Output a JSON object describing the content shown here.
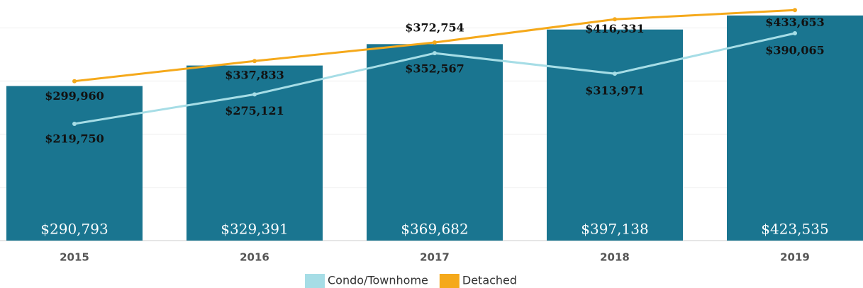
{
  "chart_data": {
    "type": "bar",
    "categories": [
      "2015",
      "2016",
      "2017",
      "2018",
      "2019"
    ],
    "series": [
      {
        "type": "bar",
        "color": "#1a7590",
        "values": [
          290793,
          329391,
          369682,
          397138,
          423535
        ],
        "value_labels": [
          "$290,793",
          "$329,391",
          "$369,682",
          "$397,138",
          "$423,535"
        ]
      },
      {
        "type": "line",
        "name": "Condo/Townhome",
        "color": "#a6dde6",
        "values": [
          219750,
          275121,
          352567,
          313971,
          390065
        ],
        "value_labels": [
          "$219,750",
          "$275,121",
          "$352,567",
          "$313,971",
          "$390,065"
        ]
      },
      {
        "type": "line",
        "name": "Detached",
        "color": "#f5a91b",
        "values": [
          299960,
          337833,
          372754,
          416331,
          433653
        ],
        "value_labels": [
          "$299,960",
          "$337,833",
          "$372,754",
          "$416,331",
          "$433,653"
        ]
      }
    ],
    "ylim": [
      0,
      450000
    ],
    "yticks": [
      0,
      100000,
      200000,
      300000,
      400000
    ],
    "grid": true,
    "legend": "bottom"
  }
}
